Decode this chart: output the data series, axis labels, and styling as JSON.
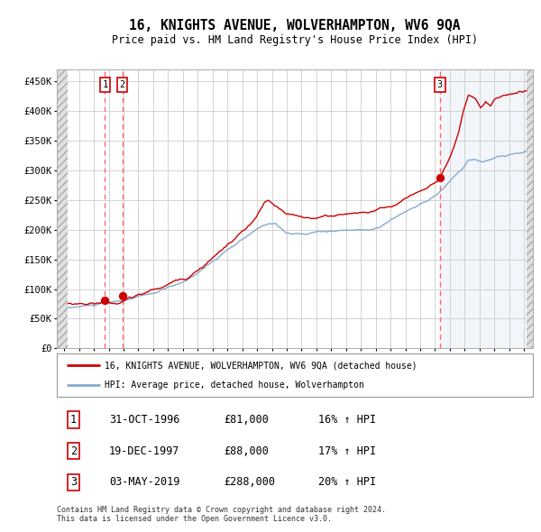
{
  "title": "16, KNIGHTS AVENUE, WOLVERHAMPTON, WV6 9QA",
  "subtitle": "Price paid vs. HM Land Registry's House Price Index (HPI)",
  "sale_prices": [
    81000,
    88000,
    288000
  ],
  "sale_labels": [
    "1",
    "2",
    "3"
  ],
  "legend_line1": "16, KNIGHTS AVENUE, WOLVERHAMPTON, WV6 9QA (detached house)",
  "legend_line2": "HPI: Average price, detached house, Wolverhampton",
  "table_rows": [
    [
      "1",
      "31-OCT-1996",
      "£81,000",
      "16% ↑ HPI"
    ],
    [
      "2",
      "19-DEC-1997",
      "£88,000",
      "17% ↑ HPI"
    ],
    [
      "3",
      "03-MAY-2019",
      "£288,000",
      "20% ↑ HPI"
    ]
  ],
  "footer": "Contains HM Land Registry data © Crown copyright and database right 2024.\nThis data is licensed under the Open Government Licence v3.0.",
  "grid_color": "#cccccc",
  "red_line_color": "#cc0000",
  "blue_line_color": "#88aacc",
  "dashed_vline_color": "#ff6666",
  "dot_color": "#cc0000",
  "ylim": [
    0,
    470000
  ],
  "yticks": [
    0,
    50000,
    100000,
    150000,
    200000,
    250000,
    300000,
    350000,
    400000,
    450000
  ],
  "ylabels": [
    "£0",
    "£50K",
    "£100K",
    "£150K",
    "£200K",
    "£250K",
    "£300K",
    "£350K",
    "£400K",
    "£450K"
  ]
}
